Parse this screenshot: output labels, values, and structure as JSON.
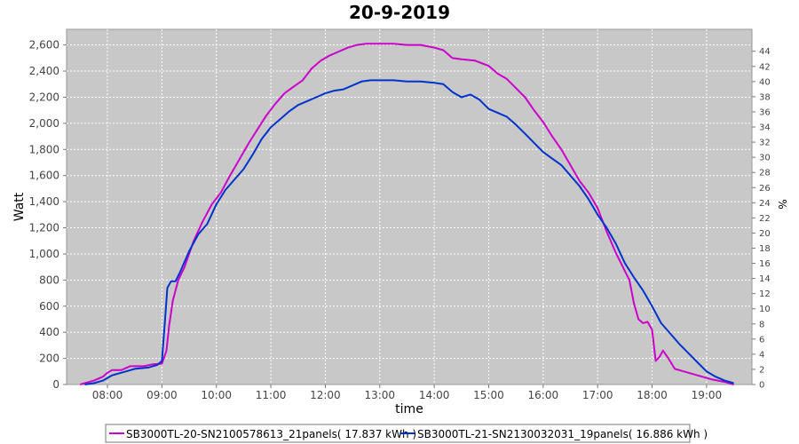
{
  "chart_data": {
    "type": "line",
    "title": "20-9-2019",
    "xlabel": "time",
    "ylabel": "Watt",
    "y2label": "%",
    "x_ticks": [
      "08:00",
      "09:00",
      "10:00",
      "11:00",
      "12:00",
      "13:00",
      "14:00",
      "15:00",
      "16:00",
      "17:00",
      "18:00",
      "19:00"
    ],
    "y_ticks": [
      "0",
      "200",
      "400",
      "600",
      "800",
      "1,000",
      "1,200",
      "1,400",
      "1,600",
      "1,800",
      "2,000",
      "2,200",
      "2,400",
      "2,600"
    ],
    "y2_ticks": [
      "0",
      "2",
      "4",
      "6",
      "8",
      "10",
      "12",
      "14",
      "16",
      "18",
      "20",
      "22",
      "24",
      "26",
      "28",
      "30",
      "32",
      "34",
      "36",
      "38",
      "40",
      "42",
      "44"
    ],
    "xlim": [
      "07:15",
      "19:50"
    ],
    "ylim": [
      0,
      2720
    ],
    "y2lim": [
      0,
      46.9
    ],
    "grid": true,
    "legend_position": "bottom",
    "colors": {
      "plot_background": "#c8c8c8",
      "grid": "#ffffff",
      "series_1": "#cc00cc",
      "series_2": "#0033cc"
    },
    "series": [
      {
        "name": "SB3000TL-20-SN2100578613_21panels( 17.837 kWh )",
        "color": "#cc00cc",
        "points": [
          [
            "07:30",
            0
          ],
          [
            "07:45",
            30
          ],
          [
            "07:55",
            60
          ],
          [
            "08:00",
            90
          ],
          [
            "08:05",
            110
          ],
          [
            "08:15",
            110
          ],
          [
            "08:25",
            140
          ],
          [
            "08:40",
            140
          ],
          [
            "08:50",
            155
          ],
          [
            "09:00",
            160
          ],
          [
            "09:05",
            260
          ],
          [
            "09:08",
            450
          ],
          [
            "09:12",
            640
          ],
          [
            "09:18",
            800
          ],
          [
            "09:25",
            900
          ],
          [
            "09:35",
            1100
          ],
          [
            "09:45",
            1250
          ],
          [
            "09:55",
            1380
          ],
          [
            "10:05",
            1470
          ],
          [
            "10:15",
            1600
          ],
          [
            "10:25",
            1720
          ],
          [
            "10:35",
            1840
          ],
          [
            "10:45",
            1950
          ],
          [
            "10:55",
            2060
          ],
          [
            "11:05",
            2150
          ],
          [
            "11:15",
            2230
          ],
          [
            "11:25",
            2280
          ],
          [
            "11:35",
            2330
          ],
          [
            "11:45",
            2420
          ],
          [
            "11:55",
            2480
          ],
          [
            "12:05",
            2520
          ],
          [
            "12:15",
            2550
          ],
          [
            "12:25",
            2580
          ],
          [
            "12:35",
            2600
          ],
          [
            "12:45",
            2610
          ],
          [
            "13:00",
            2610
          ],
          [
            "13:15",
            2610
          ],
          [
            "13:30",
            2600
          ],
          [
            "13:45",
            2600
          ],
          [
            "14:00",
            2580
          ],
          [
            "14:10",
            2560
          ],
          [
            "14:20",
            2500
          ],
          [
            "14:30",
            2490
          ],
          [
            "14:45",
            2480
          ],
          [
            "15:00",
            2440
          ],
          [
            "15:10",
            2380
          ],
          [
            "15:20",
            2340
          ],
          [
            "15:30",
            2270
          ],
          [
            "15:40",
            2200
          ],
          [
            "15:50",
            2100
          ],
          [
            "16:00",
            2010
          ],
          [
            "16:10",
            1900
          ],
          [
            "16:20",
            1800
          ],
          [
            "16:30",
            1680
          ],
          [
            "16:40",
            1560
          ],
          [
            "16:50",
            1470
          ],
          [
            "17:00",
            1350
          ],
          [
            "17:10",
            1170
          ],
          [
            "17:20",
            1010
          ],
          [
            "17:30",
            870
          ],
          [
            "17:35",
            800
          ],
          [
            "17:40",
            620
          ],
          [
            "17:45",
            500
          ],
          [
            "17:50",
            470
          ],
          [
            "17:55",
            480
          ],
          [
            "18:00",
            420
          ],
          [
            "18:04",
            180
          ],
          [
            "18:08",
            210
          ],
          [
            "18:12",
            260
          ],
          [
            "18:18",
            200
          ],
          [
            "18:25",
            120
          ],
          [
            "18:35",
            100
          ],
          [
            "18:50",
            70
          ],
          [
            "19:05",
            40
          ],
          [
            "19:20",
            20
          ],
          [
            "19:30",
            0
          ]
        ]
      },
      {
        "name": "SB3000TL-21-SN2130032031_19panels( 16.886 kWh )",
        "color": "#0033cc",
        "points": [
          [
            "07:35",
            0
          ],
          [
            "07:45",
            10
          ],
          [
            "07:55",
            30
          ],
          [
            "08:05",
            70
          ],
          [
            "08:15",
            90
          ],
          [
            "08:30",
            120
          ],
          [
            "08:45",
            130
          ],
          [
            "08:55",
            150
          ],
          [
            "09:00",
            180
          ],
          [
            "09:03",
            450
          ],
          [
            "09:06",
            740
          ],
          [
            "09:10",
            790
          ],
          [
            "09:15",
            790
          ],
          [
            "09:20",
            860
          ],
          [
            "09:30",
            1020
          ],
          [
            "09:40",
            1150
          ],
          [
            "09:50",
            1230
          ],
          [
            "10:00",
            1380
          ],
          [
            "10:10",
            1490
          ],
          [
            "10:20",
            1570
          ],
          [
            "10:30",
            1650
          ],
          [
            "10:40",
            1760
          ],
          [
            "10:50",
            1880
          ],
          [
            "11:00",
            1970
          ],
          [
            "11:10",
            2030
          ],
          [
            "11:20",
            2090
          ],
          [
            "11:30",
            2140
          ],
          [
            "11:40",
            2170
          ],
          [
            "11:50",
            2200
          ],
          [
            "12:00",
            2230
          ],
          [
            "12:10",
            2250
          ],
          [
            "12:20",
            2260
          ],
          [
            "12:30",
            2290
          ],
          [
            "12:40",
            2320
          ],
          [
            "12:50",
            2330
          ],
          [
            "13:00",
            2330
          ],
          [
            "13:15",
            2330
          ],
          [
            "13:30",
            2320
          ],
          [
            "13:45",
            2320
          ],
          [
            "14:00",
            2310
          ],
          [
            "14:10",
            2300
          ],
          [
            "14:20",
            2240
          ],
          [
            "14:30",
            2200
          ],
          [
            "14:40",
            2220
          ],
          [
            "14:50",
            2180
          ],
          [
            "15:00",
            2110
          ],
          [
            "15:10",
            2080
          ],
          [
            "15:20",
            2050
          ],
          [
            "15:30",
            1990
          ],
          [
            "15:40",
            1920
          ],
          [
            "15:50",
            1850
          ],
          [
            "16:00",
            1780
          ],
          [
            "16:10",
            1730
          ],
          [
            "16:20",
            1680
          ],
          [
            "16:30",
            1600
          ],
          [
            "16:40",
            1520
          ],
          [
            "16:50",
            1420
          ],
          [
            "17:00",
            1300
          ],
          [
            "17:10",
            1200
          ],
          [
            "17:20",
            1080
          ],
          [
            "17:30",
            930
          ],
          [
            "17:40",
            820
          ],
          [
            "17:50",
            720
          ],
          [
            "18:00",
            600
          ],
          [
            "18:10",
            470
          ],
          [
            "18:20",
            390
          ],
          [
            "18:30",
            310
          ],
          [
            "18:40",
            240
          ],
          [
            "18:50",
            170
          ],
          [
            "19:00",
            100
          ],
          [
            "19:10",
            60
          ],
          [
            "19:20",
            30
          ],
          [
            "19:30",
            10
          ]
        ]
      }
    ]
  }
}
